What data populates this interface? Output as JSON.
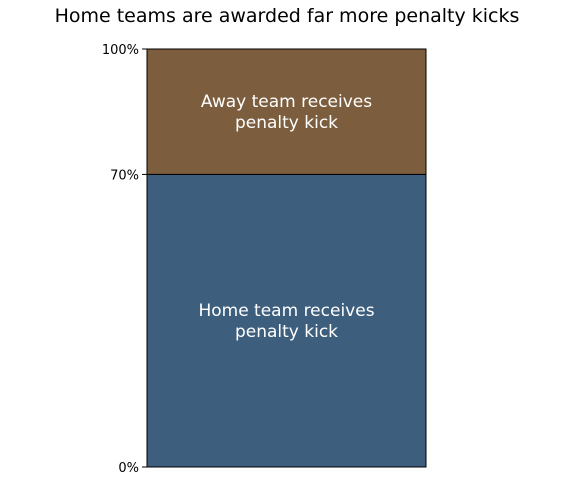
{
  "chart_data": {
    "type": "bar",
    "title": "Home teams are awarded far more penalty kicks",
    "xlabel": "",
    "ylabel": "",
    "ylim": [
      0,
      100
    ],
    "y_ticks": [
      {
        "value": 0,
        "label": "0%"
      },
      {
        "value": 70,
        "label": "70%"
      },
      {
        "value": 100,
        "label": "100%"
      }
    ],
    "stacked": true,
    "grid": false,
    "segments": [
      {
        "label_lines": [
          "Home team receives",
          "penalty kick"
        ],
        "value": 70,
        "color": "#3e5e7e"
      },
      {
        "label_lines": [
          "Away team receives",
          "penalty kick"
        ],
        "value": 30,
        "color": "#7c5e3f"
      }
    ]
  }
}
